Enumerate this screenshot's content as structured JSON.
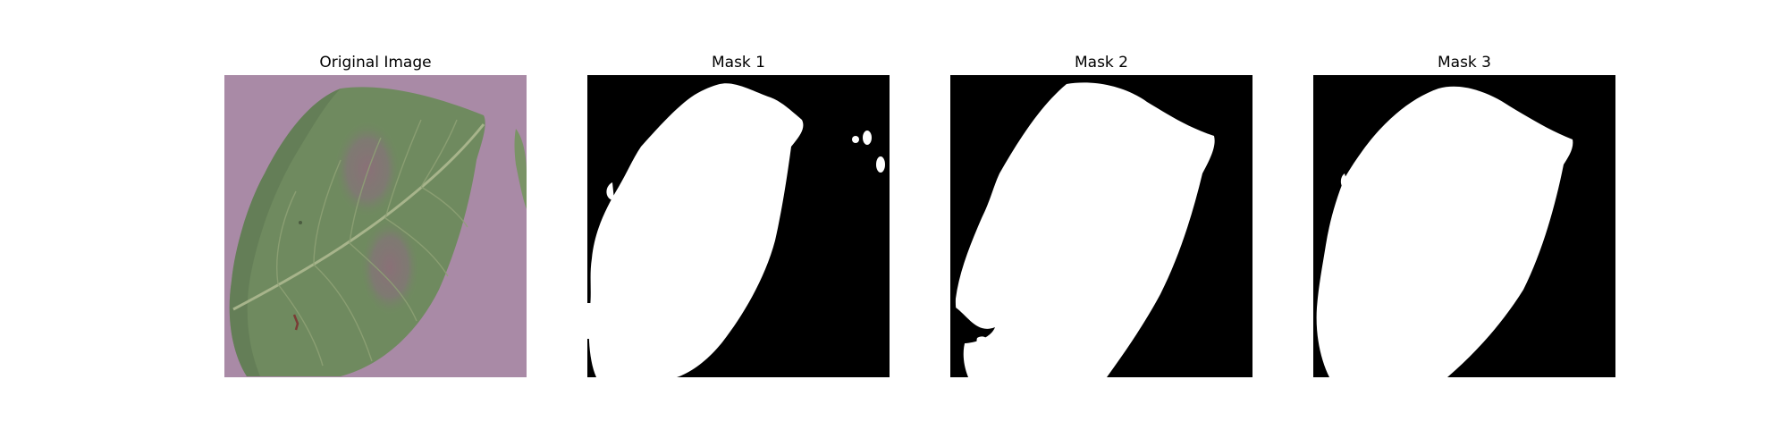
{
  "figure": {
    "panels": [
      {
        "title": "Original Image",
        "kind": "photo"
      },
      {
        "title": "Mask 1",
        "kind": "mask"
      },
      {
        "title": "Mask 2",
        "kind": "mask"
      },
      {
        "title": "Mask 3",
        "kind": "mask"
      }
    ]
  },
  "colors": {
    "background_purple": "#a98aa6",
    "leaf_green": "#6f8a5f",
    "leaf_dark": "#5d7651",
    "lesion_brown": "#8a7070",
    "vein": "#a7b48b",
    "mask_bg": "#000000",
    "mask_fg": "#ffffff"
  }
}
